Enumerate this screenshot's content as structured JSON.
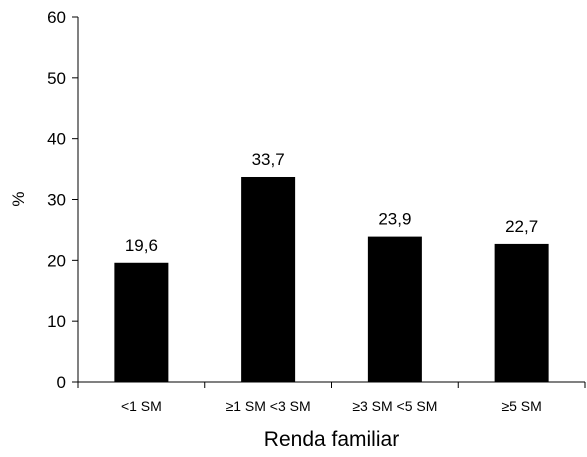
{
  "chart_data": {
    "type": "bar",
    "categories": [
      "<1 SM",
      "≥1 SM <3 SM",
      "≥3 SM <5 SM",
      "≥5 SM"
    ],
    "values": [
      19.6,
      33.7,
      23.9,
      22.7
    ],
    "data_labels": [
      "19,6",
      "33,7",
      "23,9",
      "22,7"
    ],
    "title": "",
    "xlabel": "Renda familiar",
    "ylabel": "%",
    "ylim": [
      0,
      60
    ],
    "yticks": [
      0,
      10,
      20,
      30,
      40,
      50,
      60
    ],
    "ytick_labels": [
      "0",
      "10",
      "20",
      "30",
      "40",
      "50",
      "60"
    ],
    "grid": false,
    "legend": "none",
    "bar_color": "#000000"
  }
}
